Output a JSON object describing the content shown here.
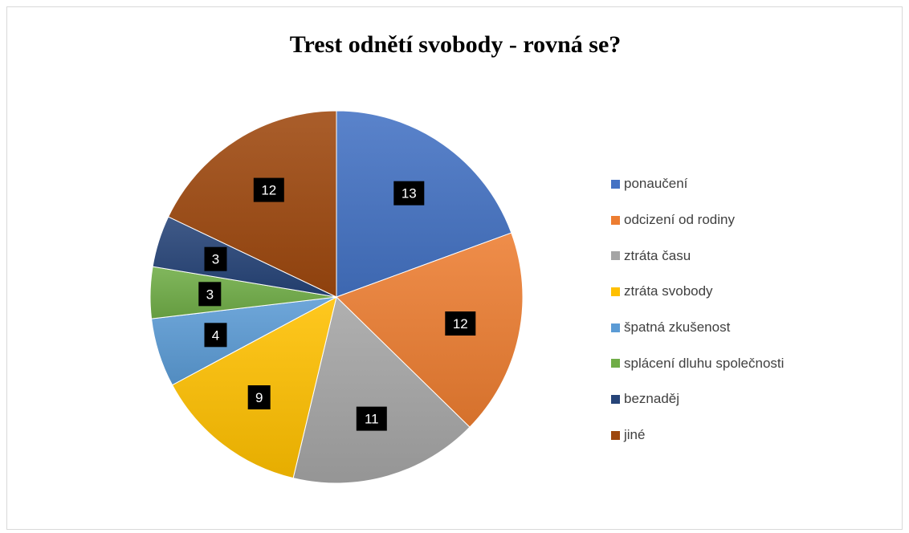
{
  "chart_data": {
    "type": "pie",
    "title": "Trest odnětí svobody - rovná se?",
    "categories": [
      "ponaučení",
      "odcizení od rodiny",
      "ztráta času",
      "ztráta svobody",
      "špatná zkušenost",
      "splácení dluhu společnosti",
      "beznaděj",
      "jiné"
    ],
    "values": [
      13,
      12,
      11,
      9,
      4,
      3,
      3,
      12
    ],
    "colors": [
      "#4472C4",
      "#ED7D31",
      "#A5A5A5",
      "#FFC000",
      "#5B9BD5",
      "#70AD47",
      "#264478",
      "#9E480E"
    ],
    "legend_position": "right",
    "data_labels": true
  }
}
